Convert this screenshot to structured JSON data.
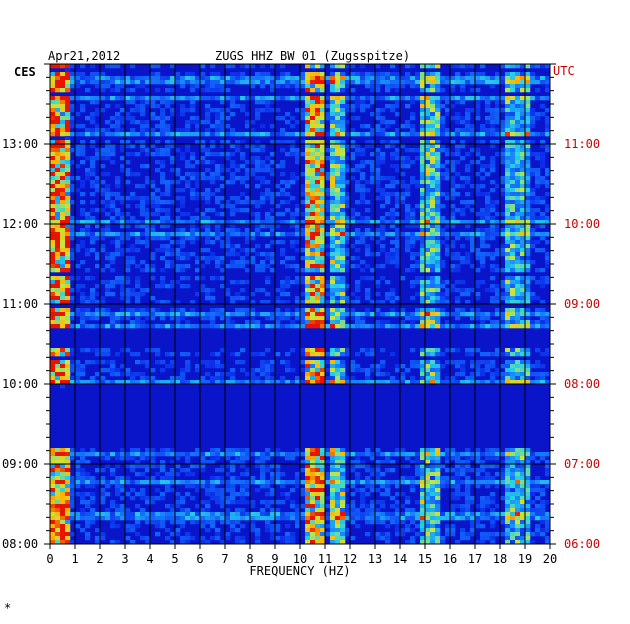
{
  "header": {
    "date": "Apr21,2012",
    "station": "ZUGS HHZ BW 01 (Zugsspitze)",
    "left_tz": "CES",
    "right_tz": "UTC"
  },
  "colors": {
    "background_blue": "#0a14c8",
    "grid": "#000000",
    "right_axis_text": "#cc0000",
    "left_axis_text": "#000000"
  },
  "chart_data": {
    "type": "heatmap",
    "title": "ZUGS HHZ BW 01 (Zugsspitze)",
    "xlabel": "FREQUENCY (HZ)",
    "xlim": [
      0,
      20
    ],
    "x_ticks": [
      "0",
      "1",
      "2",
      "3",
      "4",
      "5",
      "6",
      "7",
      "8",
      "9",
      "10",
      "11",
      "12",
      "13",
      "14",
      "15",
      "16",
      "17",
      "18",
      "19",
      "20"
    ],
    "y_ticks_left": [
      "13:00",
      "12:00",
      "11:00",
      "10:00",
      "09:00",
      "08:00"
    ],
    "y_ticks_right": [
      "11:00",
      "10:00",
      "09:00",
      "08:00",
      "07:00",
      "06:00"
    ],
    "ylim_hours_utc": [
      6,
      12
    ],
    "grid": true,
    "hot_bands_hz": [
      {
        "from": 0.1,
        "to": 0.8,
        "intensity": 0.85
      },
      {
        "from": 10.2,
        "to": 11.0,
        "intensity": 0.75
      },
      {
        "from": 11.2,
        "to": 11.7,
        "intensity": 0.5
      },
      {
        "from": 14.8,
        "to": 15.6,
        "intensity": 0.45
      },
      {
        "from": 18.2,
        "to": 19.2,
        "intensity": 0.4
      }
    ],
    "quiet_periods_utc": [
      {
        "from": 7.2,
        "to": 7.95
      },
      {
        "from": 8.45,
        "to": 8.7
      }
    ]
  },
  "footer_mark": "*"
}
